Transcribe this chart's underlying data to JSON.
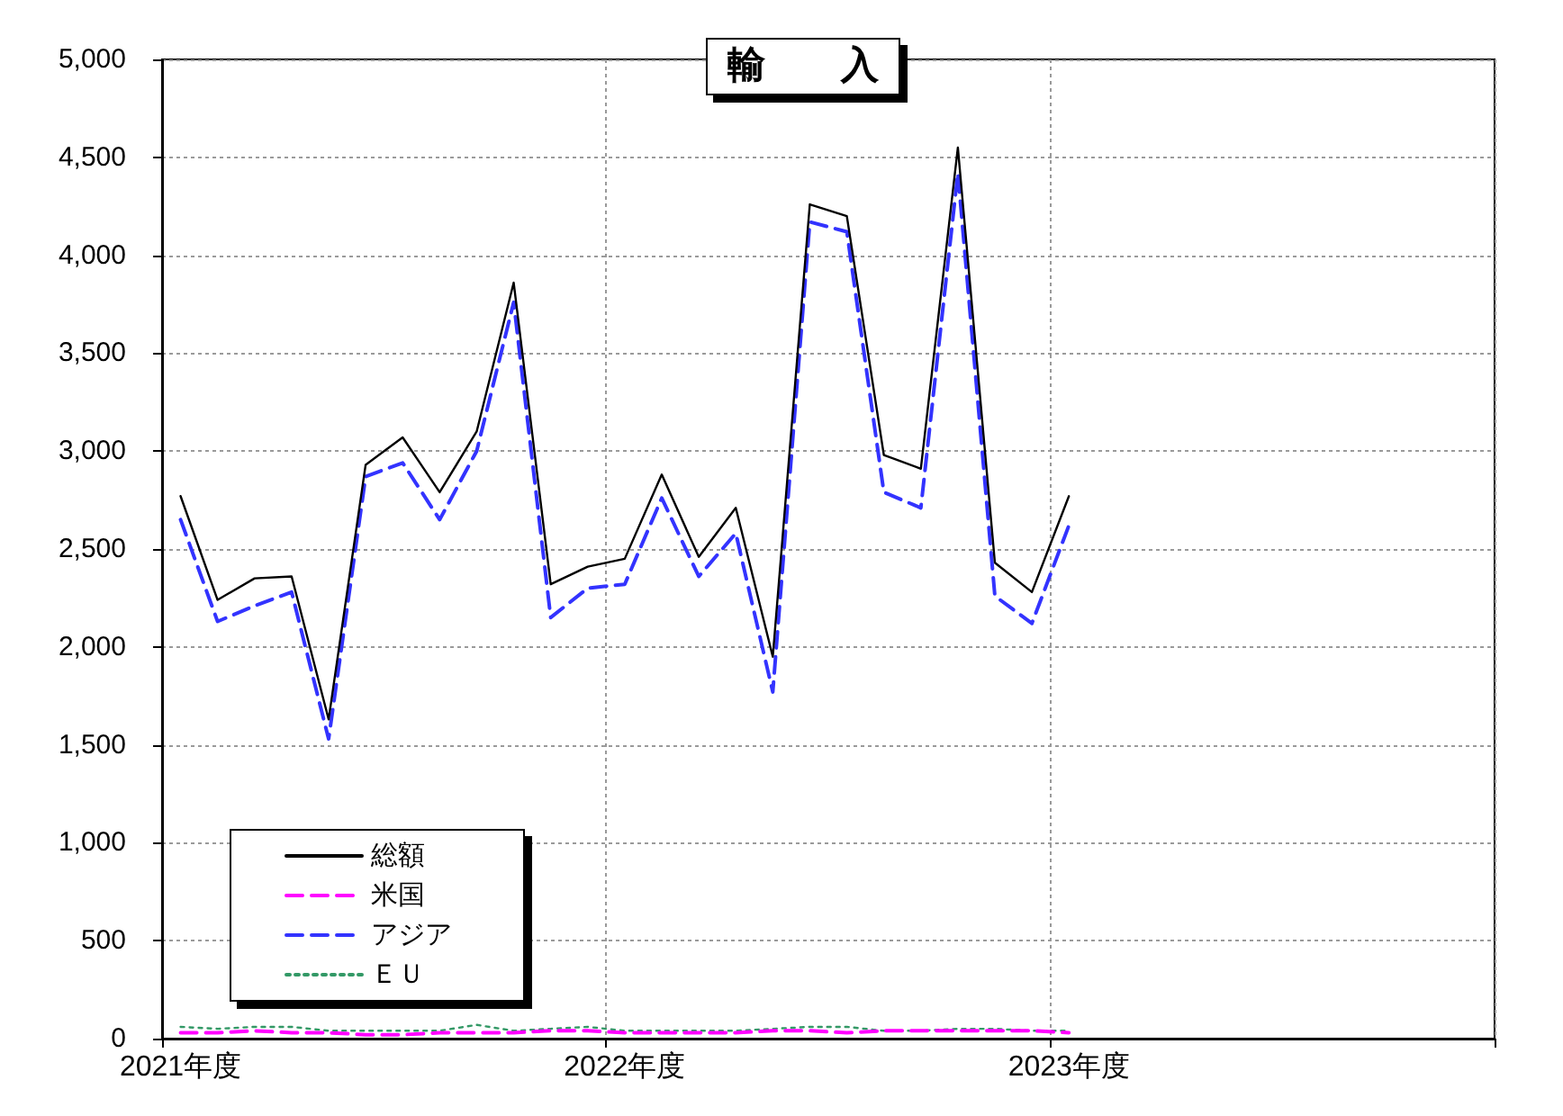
{
  "chart_data": {
    "type": "line",
    "title": "輸　　入",
    "categories": [
      "2021年度",
      null,
      null,
      null,
      null,
      null,
      null,
      null,
      null,
      null,
      null,
      null,
      "2022年度",
      null,
      null,
      null,
      null,
      null,
      null,
      null,
      null,
      null,
      null,
      null,
      "2023年度",
      null,
      null,
      null,
      null,
      null,
      null,
      null,
      null,
      null,
      null,
      null
    ],
    "ylim": [
      0,
      5000
    ],
    "yticks": [
      0,
      500,
      {
        "value": 1000,
        "label": "1,000"
      },
      {
        "value": 1500,
        "label": "1,500"
      },
      {
        "value": 2000,
        "label": "2,000"
      },
      {
        "value": 2500,
        "label": "2,500"
      },
      {
        "value": 3000,
        "label": "3,000"
      },
      {
        "value": 3500,
        "label": "3,500"
      },
      {
        "value": 4000,
        "label": "4,000"
      },
      {
        "value": 4500,
        "label": "4,500"
      },
      {
        "value": 5000,
        "label": "5,000"
      }
    ],
    "grid": true,
    "legend": "bottom left",
    "marker": "none",
    "series": [
      {
        "name": "総額",
        "color": "#000000",
        "line_style": "solid",
        "values": [
          2770,
          2240,
          2350,
          2360,
          1630,
          2930,
          3070,
          2790,
          3100,
          3860,
          2320,
          2410,
          2450,
          2880,
          2460,
          2710,
          1950,
          4260,
          4200,
          2980,
          2910,
          4550,
          2430,
          2280,
          2770,
          null,
          null,
          null,
          null,
          null,
          null,
          null,
          null,
          null,
          null,
          null
        ]
      },
      {
        "name": "米国",
        "color": "#ff00ff",
        "line_style": "dashed",
        "values": [
          30,
          30,
          40,
          30,
          30,
          20,
          20,
          30,
          30,
          30,
          40,
          40,
          30,
          30,
          30,
          30,
          40,
          40,
          30,
          40,
          40,
          40,
          40,
          40,
          30,
          null,
          null,
          null,
          null,
          null,
          null,
          null,
          null,
          null,
          null,
          null
        ]
      },
      {
        "name": "アジア",
        "color": "#3333ff",
        "line_style": "dashed",
        "values": [
          2650,
          2130,
          2210,
          2280,
          1530,
          2870,
          2940,
          2650,
          3000,
          3760,
          2150,
          2300,
          2320,
          2760,
          2360,
          2580,
          1770,
          4170,
          4120,
          2790,
          2710,
          4420,
          2260,
          2120,
          2620,
          null,
          null,
          null,
          null,
          null,
          null,
          null,
          null,
          null,
          null,
          null
        ]
      },
      {
        "name": "ＥＵ",
        "color": "#339966",
        "line_style": "dotted",
        "values": [
          60,
          50,
          60,
          60,
          40,
          40,
          40,
          40,
          70,
          40,
          50,
          60,
          40,
          40,
          40,
          40,
          50,
          60,
          60,
          40,
          40,
          50,
          50,
          40,
          40,
          null,
          null,
          null,
          null,
          null,
          null,
          null,
          null,
          null,
          null,
          null
        ]
      }
    ]
  }
}
